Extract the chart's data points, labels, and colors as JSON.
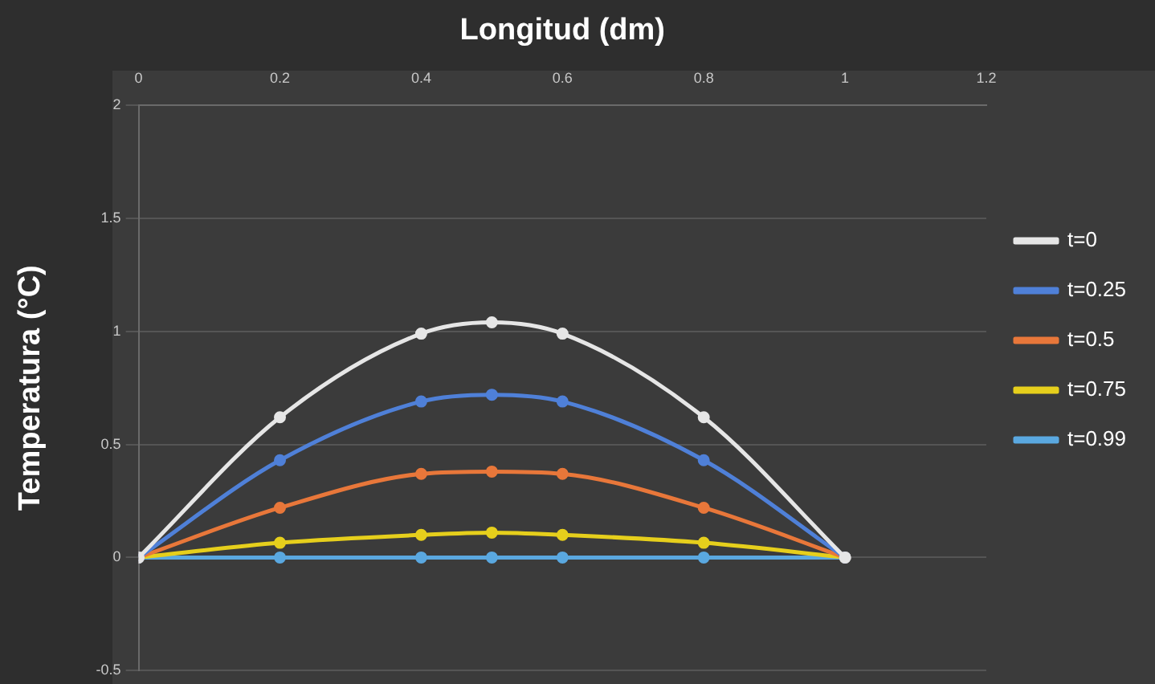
{
  "chart_data": {
    "type": "line",
    "xlabel": "Longitud (dm)",
    "ylabel": "Temperatura (°C)",
    "xlim": [
      0,
      1.2
    ],
    "xticks": [
      0,
      0.2,
      0.4,
      0.6,
      0.8,
      1,
      1.2
    ],
    "ylim": [
      -0.5,
      2
    ],
    "yticks": [
      -0.5,
      0,
      0.5,
      1,
      1.5,
      2
    ],
    "grid": "y",
    "legend": "right",
    "marker": "circle",
    "line_style": "solid",
    "series": [
      {
        "name": "t=0",
        "color": "#e6e6e6",
        "x": [
          0,
          0.2,
          0.4,
          0.5,
          0.6,
          0.8,
          1
        ],
        "values": [
          0,
          0.62,
          0.99,
          1.04,
          0.99,
          0.62,
          0
        ]
      },
      {
        "name": "t=0.25",
        "color": "#4f80d8",
        "x": [
          0,
          0.2,
          0.4,
          0.5,
          0.6,
          0.8,
          1
        ],
        "values": [
          0,
          0.43,
          0.69,
          0.72,
          0.69,
          0.43,
          0
        ]
      },
      {
        "name": "t=0.5",
        "color": "#e8773a",
        "x": [
          0,
          0.2,
          0.4,
          0.5,
          0.6,
          0.8,
          1
        ],
        "values": [
          0,
          0.22,
          0.37,
          0.38,
          0.37,
          0.22,
          0
        ]
      },
      {
        "name": "t=0.75",
        "color": "#e6cf1c",
        "x": [
          0,
          0.2,
          0.4,
          0.5,
          0.6,
          0.8,
          1
        ],
        "values": [
          0,
          0.065,
          0.1,
          0.11,
          0.1,
          0.065,
          0
        ]
      },
      {
        "name": "t=0.99",
        "color": "#5aa8e0",
        "x": [
          0,
          0.2,
          0.4,
          0.5,
          0.6,
          0.8,
          1
        ],
        "values": [
          0,
          0,
          0,
          0,
          0,
          0,
          0
        ]
      }
    ]
  }
}
